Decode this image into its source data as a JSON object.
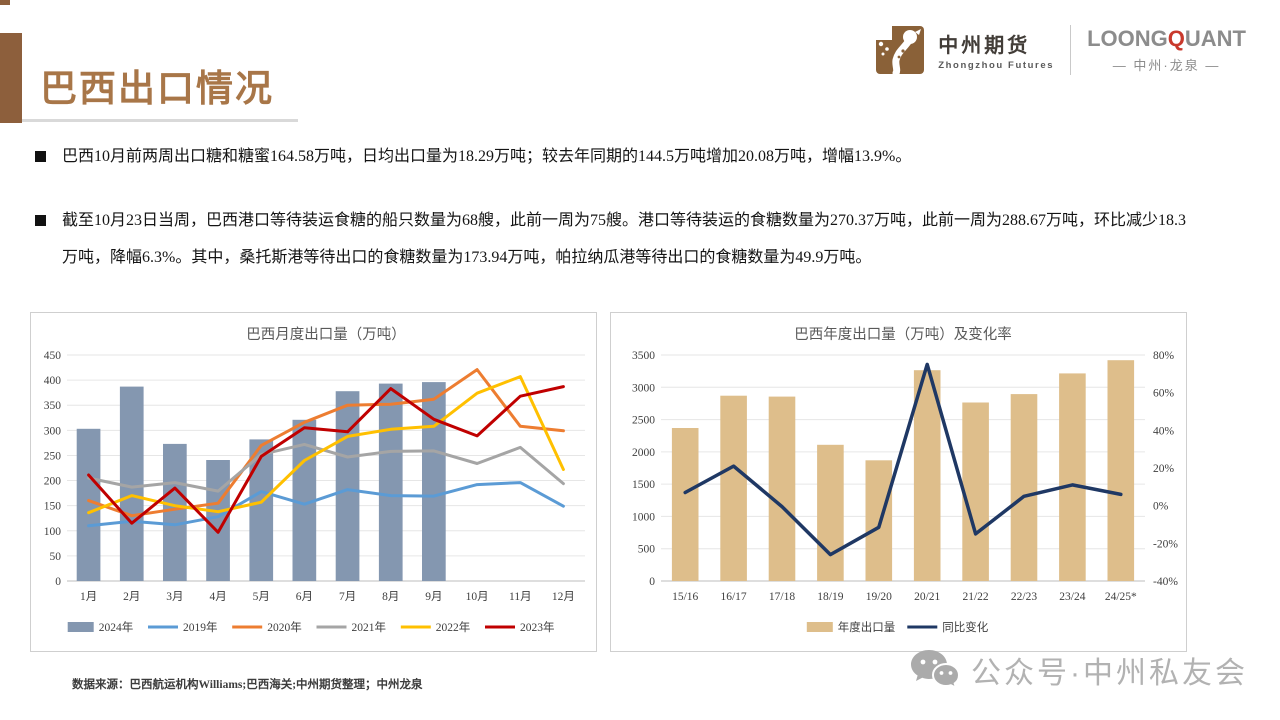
{
  "header": {
    "title": "巴西出口情况",
    "logo_zhongzhou": {
      "cn": "中州期货",
      "en": "Zhongzhou Futures"
    },
    "logo_loongquant": {
      "p1": "LOONG",
      "p2": "Q",
      "p3": "UANT",
      "cn": "— 中州·龙泉 —"
    }
  },
  "bullets": [
    {
      "text": "巴西10月前两周出口糖和糖蜜164.58万吨，日均出口量为18.29万吨；较去年同期的144.5万吨增加20.08万吨，增幅13.9%。"
    },
    {
      "text": "截至10月23日当周，巴西港口等待装运食糖的船只数量为68艘，此前一周为75艘。港口等待装运的食糖数量为270.37万吨，此前一周为288.67万吨，环比减少18.3万吨，降幅6.3%。其中，桑托斯港等待出口的食糖数量为173.94万吨，帕拉纳瓜港等待出口的食糖数量为49.9万吨。"
    }
  ],
  "footer": {
    "source": "数据来源：巴西航运机构Williams;巴西海关;中州期货整理；中州龙泉",
    "watermark": "公众号·中州私友会"
  },
  "colors": {
    "accent_brown": "#8d5f3c",
    "title_brown": "#a87648",
    "bar_2024": "#8497b0",
    "line_2019": "#5b9bd5",
    "line_2020": "#ed7d31",
    "line_2021": "#a5a5a5",
    "line_2022": "#ffc000",
    "line_2023": "#c00000",
    "bar_annual": "#debe8b",
    "line_yoy": "#1f3864",
    "logo_red": "#c9392c"
  },
  "chart_data": [
    {
      "type": "bar+line",
      "title": "巴西月度出口量（万吨）",
      "categories": [
        "1月",
        "2月",
        "3月",
        "4月",
        "5月",
        "6月",
        "7月",
        "8月",
        "9月",
        "10月",
        "11月",
        "12月"
      ],
      "ylim": [
        0,
        450
      ],
      "ystep": 50,
      "grid": true,
      "legend_position": "bottom",
      "bar_series": {
        "name": "2024年",
        "color": "#8497b0",
        "values": [
          303,
          387,
          273,
          241,
          282,
          321,
          378,
          393,
          396,
          null,
          null,
          null
        ]
      },
      "line_series": [
        {
          "name": "2019年",
          "color": "#5b9bd5",
          "values": [
            110,
            119,
            112,
            128,
            178,
            153,
            182,
            170,
            169,
            192,
            196,
            149
          ]
        },
        {
          "name": "2020年",
          "color": "#ed7d31",
          "values": [
            160,
            130,
            143,
            155,
            270,
            316,
            350,
            352,
            362,
            421,
            308,
            299
          ]
        },
        {
          "name": "2021年",
          "color": "#a5a5a5",
          "values": [
            205,
            187,
            196,
            179,
            252,
            272,
            247,
            258,
            259,
            234,
            266,
            194
          ]
        },
        {
          "name": "2022年",
          "color": "#ffc000",
          "values": [
            136,
            170,
            150,
            138,
            157,
            240,
            288,
            302,
            308,
            374,
            407,
            222
          ]
        },
        {
          "name": "2023年",
          "color": "#c00000",
          "values": [
            211,
            115,
            185,
            97,
            248,
            305,
            297,
            383,
            322,
            289,
            368,
            387
          ]
        }
      ]
    },
    {
      "type": "bar+line",
      "title": "巴西年度出口量（万吨）及变化率",
      "categories": [
        "15/16",
        "16/17",
        "17/18",
        "18/19",
        "19/20",
        "20/21",
        "21/22",
        "22/23",
        "23/24",
        "24/25*"
      ],
      "ylim": [
        0,
        3500
      ],
      "ystep": 500,
      "y2lim": [
        -40,
        80
      ],
      "y2step": 20,
      "grid": true,
      "legend_position": "bottom",
      "bar_series": {
        "name": "年度出口量",
        "color": "#debe8b",
        "values": [
          2370,
          2870,
          2855,
          2110,
          1870,
          3265,
          2765,
          2895,
          3215,
          3420
        ]
      },
      "line_series": [
        {
          "name": "同比变化",
          "color": "#1f3864",
          "axis": "right",
          "width": 3.5,
          "values": [
            7,
            21,
            -0.5,
            -26,
            -11.5,
            75,
            -15,
            5,
            11,
            6
          ]
        }
      ]
    }
  ]
}
